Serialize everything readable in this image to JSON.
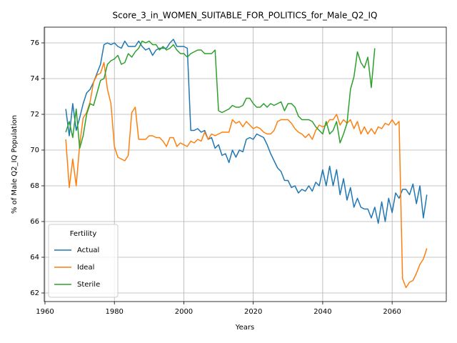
{
  "chart_data": {
    "type": "line",
    "title": "Score_3_in_WOMEN_SUITABLE_FOR_POLITICS_for_Male_Q2_IQ",
    "xlabel": "Years",
    "ylabel": "% of Male Q2_IQ Population",
    "x": [
      1966,
      1967,
      1968,
      1969,
      1970,
      1971,
      1972,
      1973,
      1974,
      1975,
      1976,
      1977,
      1978,
      1979,
      1980,
      1981,
      1982,
      1983,
      1984,
      1985,
      1986,
      1987,
      1988,
      1989,
      1990,
      1991,
      1992,
      1993,
      1994,
      1995,
      1996,
      1997,
      1998,
      1999,
      2000,
      2001,
      2002,
      2003,
      2004,
      2005,
      2006,
      2007,
      2008,
      2009,
      2010,
      2011,
      2012,
      2013,
      2014,
      2015,
      2016,
      2017,
      2018,
      2019,
      2020,
      2021,
      2022,
      2023,
      2024,
      2025,
      2026,
      2027,
      2028,
      2029,
      2030,
      2031,
      2032,
      2033,
      2034,
      2035,
      2036,
      2037,
      2038,
      2039,
      2040,
      2041,
      2042,
      2043,
      2044,
      2045,
      2046,
      2047,
      2048,
      2049,
      2050,
      2051,
      2052,
      2053,
      2054,
      2055,
      2056,
      2057,
      2058,
      2059,
      2060,
      2061,
      2062,
      2063,
      2064,
      2065,
      2066,
      2067,
      2068,
      2069,
      2070
    ],
    "series": [
      {
        "name": "Actual",
        "color": "#1f77b4",
        "values": [
          72.3,
          70.8,
          72.6,
          71.1,
          71.8,
          72.6,
          73.2,
          73.4,
          73.8,
          74.3,
          74.8,
          75.9,
          76.0,
          75.9,
          76.0,
          75.8,
          75.7,
          76.1,
          75.8,
          75.8,
          75.8,
          76.1,
          75.8,
          75.6,
          75.7,
          75.3,
          75.6,
          75.7,
          75.7,
          75.7,
          76.0,
          76.2,
          75.8,
          75.8,
          75.8,
          75.7,
          71.1,
          71.1,
          71.2,
          71.0,
          71.1,
          70.6,
          70.7,
          70.1,
          70.3,
          69.7,
          69.8,
          69.3,
          70.0,
          69.6,
          70.0,
          69.9,
          70.6,
          70.7,
          70.6,
          70.9,
          70.8,
          70.7,
          70.3,
          69.8,
          69.4,
          69.0,
          68.8,
          68.3,
          68.3,
          67.9,
          68.0,
          67.6,
          67.8,
          67.7,
          68.0,
          67.7,
          68.2,
          68.0,
          68.9,
          68.0,
          69.1,
          68.0,
          68.9,
          67.5,
          68.4,
          67.2,
          67.9,
          66.8,
          67.3,
          66.8,
          66.7,
          66.7,
          66.2,
          66.8,
          65.9,
          67.1,
          66.0,
          67.3,
          66.5,
          67.6,
          67.3,
          67.8,
          67.8,
          67.5,
          68.1,
          67.0,
          68.0,
          66.2,
          67.5
        ]
      },
      {
        "name": "Ideal",
        "color": "#ff7f0e",
        "values": [
          70.6,
          67.9,
          69.5,
          68.0,
          70.3,
          71.8,
          72.1,
          72.7,
          73.8,
          74.2,
          74.3,
          74.9,
          73.4,
          72.6,
          70.2,
          69.6,
          69.5,
          69.4,
          69.7,
          72.1,
          72.4,
          70.6,
          70.6,
          70.6,
          70.8,
          70.8,
          70.7,
          70.7,
          70.5,
          70.2,
          70.7,
          70.7,
          70.2,
          70.4,
          70.3,
          70.2,
          70.5,
          70.4,
          70.6,
          70.5,
          71.0,
          70.6,
          70.9,
          70.8,
          70.9,
          71.0,
          71.0,
          71.0,
          71.7,
          71.5,
          71.6,
          71.3,
          71.6,
          71.4,
          71.2,
          71.3,
          71.2,
          71.0,
          70.9,
          70.9,
          71.1,
          71.6,
          71.7,
          71.7,
          71.7,
          71.5,
          71.2,
          71.0,
          70.9,
          70.7,
          70.9,
          70.6,
          71.1,
          71.4,
          71.3,
          71.4,
          71.7,
          71.7,
          72.0,
          71.4,
          71.7,
          71.5,
          71.7,
          71.2,
          71.6,
          70.9,
          71.3,
          70.9,
          71.2,
          70.9,
          71.3,
          71.2,
          71.5,
          71.4,
          71.7,
          71.4,
          71.6,
          62.8,
          62.3,
          62.6,
          62.7,
          63.1,
          63.6,
          63.9,
          64.5
        ]
      },
      {
        "name": "Sterile",
        "color": "#2ca02c",
        "values": [
          71.0,
          71.6,
          70.7,
          72.3,
          70.1,
          70.8,
          72.0,
          72.6,
          72.5,
          73.2,
          73.9,
          74.0,
          74.8,
          75.0,
          75.1,
          75.3,
          74.8,
          74.9,
          75.4,
          75.2,
          75.5,
          75.7,
          76.1,
          76.0,
          76.1,
          75.9,
          75.9,
          75.6,
          75.8,
          75.6,
          75.7,
          75.9,
          75.6,
          75.4,
          75.4,
          75.2,
          75.4,
          75.5,
          75.6,
          75.6,
          75.4,
          75.4,
          75.4,
          75.6,
          72.2,
          72.1,
          72.2,
          72.3,
          72.5,
          72.4,
          72.4,
          72.5,
          72.9,
          72.9,
          72.6,
          72.4,
          72.4,
          72.6,
          72.4,
          72.6,
          72.5,
          72.6,
          72.7,
          72.2,
          72.6,
          72.6,
          72.4,
          71.9,
          71.7,
          71.7,
          71.7,
          71.6,
          71.3,
          71.1,
          70.9,
          71.6,
          70.9,
          71.1,
          71.6,
          70.4,
          70.9,
          71.5,
          73.4,
          74.1,
          75.5,
          74.9,
          74.6,
          75.2,
          73.5,
          75.7,
          null,
          null,
          null,
          null,
          null,
          null,
          null,
          null,
          null,
          null,
          null,
          null,
          null,
          null,
          null
        ]
      }
    ],
    "xlim": [
      1959.8,
      2075.6
    ],
    "ylim": [
      61.52,
      76.88
    ],
    "xticks": [
      1960,
      1980,
      2000,
      2020,
      2040,
      2060
    ],
    "yticks": [
      62,
      64,
      66,
      68,
      70,
      72,
      74,
      76
    ],
    "grid": true,
    "legend_title": "Fertility",
    "legend_loc": "lower left"
  }
}
